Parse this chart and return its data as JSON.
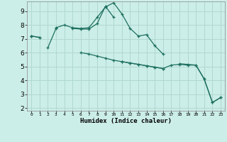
{
  "xlabel": "Humidex (Indice chaleur)",
  "x": [
    0,
    1,
    2,
    3,
    4,
    5,
    6,
    7,
    8,
    9,
    10,
    11,
    12,
    13,
    14,
    15,
    16,
    17,
    18,
    19,
    20,
    21,
    22,
    23
  ],
  "line1": [
    7.2,
    7.1,
    null,
    7.8,
    8.0,
    7.8,
    7.75,
    7.8,
    8.55,
    9.3,
    9.6,
    8.8,
    7.75,
    7.2,
    7.3,
    6.5,
    5.9,
    null,
    5.2,
    5.15,
    5.1,
    4.1,
    2.4,
    2.75
  ],
  "line2": [
    7.2,
    null,
    6.35,
    7.75,
    null,
    7.75,
    7.7,
    7.7,
    8.1,
    9.35,
    8.55,
    null,
    null,
    null,
    null,
    null,
    null,
    null,
    null,
    null,
    null,
    null,
    null,
    null
  ],
  "line3": [
    7.2,
    7.1,
    null,
    null,
    null,
    null,
    6.0,
    5.9,
    5.75,
    5.6,
    5.45,
    5.35,
    5.25,
    5.15,
    5.05,
    4.95,
    4.85,
    null,
    null,
    null,
    null,
    null,
    null,
    null
  ],
  "line4": [
    null,
    null,
    null,
    null,
    null,
    null,
    null,
    null,
    null,
    null,
    null,
    5.35,
    5.25,
    5.15,
    5.05,
    4.95,
    4.85,
    5.1,
    5.15,
    5.1,
    5.1,
    4.1,
    2.4,
    2.75
  ],
  "bg_color": "#cceee8",
  "grid_color": "#b0d8d0",
  "line_color": "#1e7060",
  "ylim_min": 1.8,
  "ylim_max": 9.7,
  "yticks": [
    2,
    3,
    4,
    5,
    6,
    7,
    8,
    9
  ],
  "xlim_min": -0.5,
  "xlim_max": 23.5,
  "marker": "+"
}
